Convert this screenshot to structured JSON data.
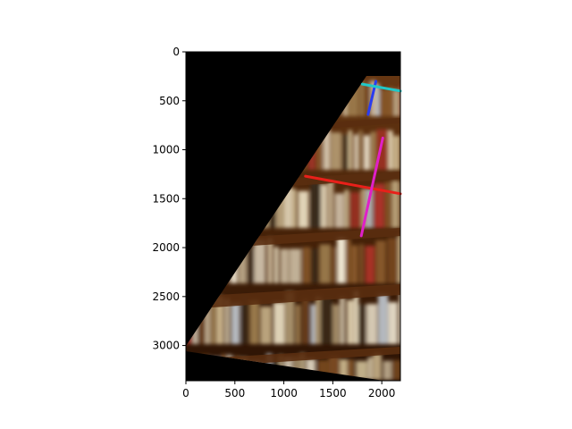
{
  "figure": {
    "image_description": "perspective-warped photo of a bookshelf with colored line annotations",
    "colors": {
      "background": "#000000",
      "shelf_wood": "#5a2e10",
      "line_red": "#e8201a",
      "line_magenta": "#e020c8",
      "line_blue": "#2a3cf0",
      "line_cyan": "#20c8c8"
    }
  },
  "chart_data": {
    "type": "image",
    "x_ticks": [
      "0",
      "500",
      "1000",
      "1500",
      "2000"
    ],
    "y_ticks": [
      "0",
      "500",
      "1000",
      "1500",
      "2000",
      "2500",
      "3000"
    ],
    "xlim": [
      0,
      2190
    ],
    "ylim": [
      3360,
      0
    ],
    "annotation_lines": [
      {
        "name": "red",
        "x1": 1220,
        "y1": 1270,
        "x2": 2190,
        "y2": 1450
      },
      {
        "name": "magenta",
        "x1": 2010,
        "y1": 880,
        "x2": 1790,
        "y2": 1880
      },
      {
        "name": "blue",
        "x1": 1940,
        "y1": 300,
        "x2": 1860,
        "y2": 640
      },
      {
        "name": "cyan",
        "x1": 1800,
        "y1": 330,
        "x2": 2190,
        "y2": 400
      }
    ]
  }
}
